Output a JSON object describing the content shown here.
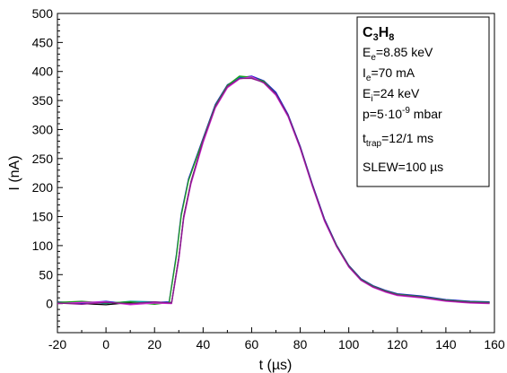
{
  "chart_data": {
    "type": "line",
    "title": "",
    "xlabel": "t (µs)",
    "ylabel": "I (nA)",
    "xlim": [
      -20,
      160
    ],
    "ylim": [
      -50,
      500
    ],
    "xticks": [
      -20,
      0,
      20,
      40,
      60,
      80,
      100,
      120,
      140,
      160
    ],
    "yticks": [
      0,
      50,
      100,
      150,
      200,
      250,
      300,
      350,
      400,
      450,
      500
    ],
    "x_minor_step": 10,
    "y_minor_step": 10,
    "grid": false,
    "legend_position": "top-right",
    "series": [
      {
        "color": "#000000",
        "x": [
          -20,
          -10,
          0,
          10,
          20,
          27,
          30,
          32,
          35,
          40,
          45,
          50,
          55,
          60,
          65,
          70,
          75,
          80,
          85,
          90,
          95,
          100,
          105,
          110,
          115,
          120,
          130,
          140,
          150,
          158
        ],
        "y": [
          2,
          0,
          -2,
          2,
          0,
          2,
          80,
          150,
          210,
          280,
          340,
          375,
          388,
          390,
          382,
          362,
          325,
          270,
          205,
          145,
          100,
          65,
          42,
          30,
          22,
          16,
          12,
          6,
          3,
          2
        ]
      },
      {
        "color": "#1f1fcf",
        "x": [
          -20,
          -10,
          0,
          10,
          20,
          26,
          29,
          31,
          34,
          40,
          45,
          50,
          55,
          60,
          65,
          70,
          75,
          80,
          85,
          90,
          95,
          100,
          105,
          110,
          115,
          120,
          130,
          140,
          150,
          158
        ],
        "y": [
          3,
          1,
          4,
          -1,
          2,
          3,
          85,
          155,
          215,
          285,
          343,
          377,
          389,
          392,
          384,
          364,
          326,
          271,
          206,
          146,
          101,
          66,
          43,
          31,
          23,
          17,
          13,
          7,
          4,
          3
        ]
      },
      {
        "color": "#009a9a",
        "x": [
          -20,
          -10,
          0,
          10,
          20,
          27,
          30,
          32,
          35,
          40,
          45,
          50,
          55,
          60,
          65,
          70,
          75,
          80,
          85,
          90,
          95,
          100,
          105,
          110,
          115,
          120,
          130,
          140,
          150,
          158
        ],
        "y": [
          1,
          3,
          0,
          4,
          3,
          1,
          78,
          148,
          208,
          279,
          338,
          374,
          391,
          389,
          381,
          360,
          323,
          268,
          203,
          143,
          99,
          64,
          41,
          29,
          21,
          15,
          11,
          5,
          2,
          1
        ]
      },
      {
        "color": "#1b9e1b",
        "x": [
          -20,
          -10,
          0,
          10,
          20,
          26,
          29,
          31,
          34,
          40,
          45,
          50,
          55,
          60,
          65,
          70,
          75,
          80,
          85,
          90,
          95,
          100,
          105,
          110,
          115,
          120,
          130,
          140,
          150,
          158
        ],
        "y": [
          2,
          4,
          1,
          3,
          -1,
          2,
          82,
          152,
          212,
          283,
          341,
          376,
          392,
          390,
          383,
          361,
          324,
          269,
          204,
          144,
          100,
          65,
          42,
          30,
          22,
          16,
          12,
          6,
          3,
          2
        ]
      },
      {
        "color": "#d62ad6",
        "x": [
          -20,
          -10,
          0,
          10,
          20,
          27,
          30,
          32,
          35,
          40,
          45,
          50,
          55,
          60,
          65,
          70,
          75,
          80,
          85,
          90,
          95,
          100,
          105,
          110,
          115,
          120,
          130,
          140,
          150,
          158
        ],
        "y": [
          0,
          2,
          3,
          -2,
          1,
          0,
          76,
          146,
          206,
          277,
          337,
          372,
          387,
          391,
          380,
          359,
          322,
          267,
          202,
          142,
          98,
          63,
          40,
          28,
          20,
          14,
          10,
          4,
          1,
          0
        ]
      },
      {
        "color": "#8a1a8a",
        "x": [
          -20,
          -10,
          0,
          10,
          20,
          27,
          30,
          32,
          35,
          40,
          45,
          50,
          55,
          60,
          65,
          70,
          75,
          80,
          85,
          90,
          95,
          100,
          105,
          110,
          115,
          120,
          130,
          140,
          150,
          158
        ],
        "y": [
          1,
          -1,
          2,
          0,
          3,
          1,
          79,
          149,
          209,
          281,
          339,
          374,
          388,
          388,
          381,
          361,
          324,
          269,
          204,
          144,
          99,
          64,
          41,
          29,
          21,
          15,
          11,
          5,
          2,
          1
        ]
      }
    ],
    "legend": {
      "title_main": "C",
      "title_sub1": "3",
      "title_mid": "H",
      "title_sub2": "8",
      "line1_main": "E",
      "line1_sub": "e",
      "line1_rest": "=8.85 keV",
      "line2_main": "I",
      "line2_sub": "e",
      "line2_rest": "=70 mA",
      "line3_main": "E",
      "line3_sub": "i",
      "line3_rest": "=24 keV",
      "line4_main": "p=5·10",
      "line4_sup": "-9",
      "line4_rest": " mbar",
      "line5_main": "t",
      "line5_sub": "trap",
      "line5_rest": "=12/1 ms",
      "line6": "SLEW=100 µs"
    }
  }
}
